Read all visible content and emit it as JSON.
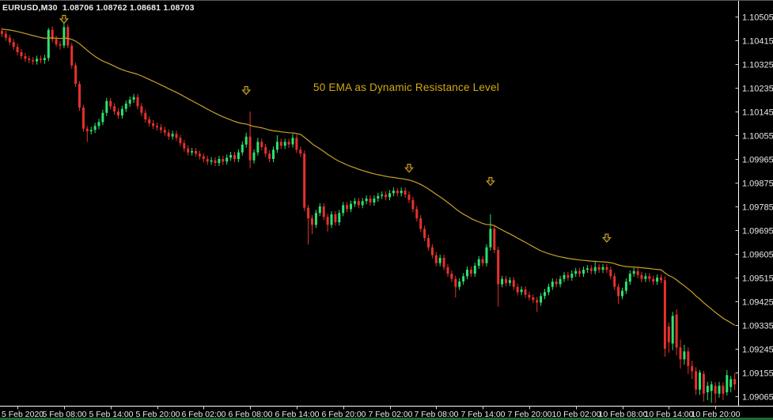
{
  "window": {
    "title": "EURUSD,M30  1.08706 1.08762 1.08681 1.08703"
  },
  "annotation": {
    "text": "50 EMA as Dynamic Resistance Level"
  },
  "colors": {
    "background": "#000000",
    "bull": "#2ce26e",
    "bear": "#e8312b",
    "ema": "#c8a227",
    "arrow": "#d8b232",
    "annotation": "#d4a90e",
    "axis_text": "#e8e8e8",
    "axis_line": "#ffffff",
    "title_text": "#ececec",
    "bottom_strip": "#1d6b33"
  },
  "chart_data": {
    "type": "candlestick",
    "symbol": "EURUSD",
    "timeframe": "M30",
    "current_bar": {
      "open": "1.08706",
      "high": "1.08762",
      "low": "1.08681",
      "close": "1.08703"
    },
    "grid": false,
    "legend": false,
    "y_axis": {
      "top_price": 1.10505,
      "step": 0.0009,
      "min": 1.09065,
      "max": 1.10505,
      "labels": [
        "1.10505",
        "1.10415",
        "1.10325",
        "1.10235",
        "1.10145",
        "1.10055",
        "1.09965",
        "1.09875",
        "1.09785",
        "1.09695",
        "1.09605",
        "1.09515",
        "1.09425",
        "1.09335",
        "1.09245",
        "1.09155",
        "1.09065"
      ]
    },
    "x_axis": {
      "ticks": [
        {
          "bar": 4,
          "label": "5 Feb 2020"
        },
        {
          "bar": 16,
          "label": "5 Feb 08:00"
        },
        {
          "bar": 28,
          "label": "5 Feb 14:00"
        },
        {
          "bar": 40,
          "label": "5 Feb 20:00"
        },
        {
          "bar": 52,
          "label": "6 Feb 02:00"
        },
        {
          "bar": 64,
          "label": "6 Feb 08:00"
        },
        {
          "bar": 76,
          "label": "6 Feb 14:00"
        },
        {
          "bar": 88,
          "label": "6 Feb 20:00"
        },
        {
          "bar": 100,
          "label": "7 Feb 02:00"
        },
        {
          "bar": 112,
          "label": "7 Feb 08:00"
        },
        {
          "bar": 124,
          "label": "7 Feb 14:00"
        },
        {
          "bar": 136,
          "label": "7 Feb 20:00"
        },
        {
          "bar": 148,
          "label": "10 Feb 02:00"
        },
        {
          "bar": 160,
          "label": "10 Feb 08:00"
        },
        {
          "bar": 172,
          "label": "10 Feb 14:00"
        },
        {
          "bar": 184,
          "label": "10 Feb 20:00"
        }
      ]
    },
    "ema": {
      "period": 50,
      "seed": 1.10458
    },
    "arrows": [
      {
        "bar": 16,
        "price": 1.10495
      },
      {
        "bar": 63,
        "price": 1.10225
      },
      {
        "bar": 105,
        "price": 1.0993
      },
      {
        "bar": 126,
        "price": 1.0988
      },
      {
        "bar": 156,
        "price": 1.09665
      }
    ],
    "candles": [
      [
        1.1045,
        1.10462,
        1.10428,
        1.1044
      ],
      [
        1.1044,
        1.10452,
        1.10413,
        1.10425
      ],
      [
        1.10425,
        1.10437,
        1.10396,
        1.10408
      ],
      [
        1.10408,
        1.1042,
        1.10378,
        1.1039
      ],
      [
        1.1039,
        1.10402,
        1.10358,
        1.1037
      ],
      [
        1.1037,
        1.10382,
        1.10343,
        1.10355
      ],
      [
        1.10355,
        1.10367,
        1.10333,
        1.10345
      ],
      [
        1.10345,
        1.10357,
        1.10328,
        1.1034
      ],
      [
        1.1034,
        1.10352,
        1.10323,
        1.10335
      ],
      [
        1.10335,
        1.10357,
        1.10323,
        1.10345
      ],
      [
        1.10345,
        1.10357,
        1.10328,
        1.1034
      ],
      [
        1.1034,
        1.1036,
        1.10326,
        1.10348
      ],
      [
        1.10348,
        1.10462,
        1.10336,
        1.10455
      ],
      [
        1.10455,
        1.10468,
        1.10408,
        1.1042
      ],
      [
        1.1042,
        1.10432,
        1.1039,
        1.104
      ],
      [
        1.104,
        1.10412,
        1.1038,
        1.10395
      ],
      [
        1.10395,
        1.10485,
        1.10385,
        1.10465
      ],
      [
        1.10465,
        1.10475,
        1.10385,
        1.10395
      ],
      [
        1.10395,
        1.10405,
        1.10308,
        1.1032
      ],
      [
        1.1032,
        1.1033,
        1.10238,
        1.1025
      ],
      [
        1.1025,
        1.1026,
        1.10148,
        1.1016
      ],
      [
        1.1016,
        1.1017,
        1.10068,
        1.1008
      ],
      [
        1.1008,
        1.1009,
        1.1003,
        1.1007
      ],
      [
        1.1007,
        1.10087,
        1.10058,
        1.10075
      ],
      [
        1.10075,
        1.10102,
        1.10063,
        1.1009
      ],
      [
        1.1009,
        1.10117,
        1.10078,
        1.10105
      ],
      [
        1.10105,
        1.10152,
        1.10093,
        1.1014
      ],
      [
        1.1014,
        1.10197,
        1.10128,
        1.10185
      ],
      [
        1.10185,
        1.10197,
        1.10153,
        1.10165
      ],
      [
        1.10165,
        1.10177,
        1.10133,
        1.10145
      ],
      [
        1.10145,
        1.10157,
        1.10118,
        1.1013
      ],
      [
        1.1013,
        1.10167,
        1.10118,
        1.10155
      ],
      [
        1.10155,
        1.10187,
        1.10143,
        1.10175
      ],
      [
        1.10175,
        1.10202,
        1.10163,
        1.1019
      ],
      [
        1.1019,
        1.10212,
        1.10178,
        1.102
      ],
      [
        1.102,
        1.10212,
        1.10153,
        1.10165
      ],
      [
        1.10165,
        1.10177,
        1.10128,
        1.1014
      ],
      [
        1.1014,
        1.10152,
        1.10103,
        1.10115
      ],
      [
        1.10115,
        1.10127,
        1.10088,
        1.101
      ],
      [
        1.101,
        1.10112,
        1.10078,
        1.1009
      ],
      [
        1.1009,
        1.10102,
        1.10073,
        1.10085
      ],
      [
        1.10085,
        1.10097,
        1.10063,
        1.10075
      ],
      [
        1.10075,
        1.10087,
        1.10053,
        1.10065
      ],
      [
        1.10065,
        1.10077,
        1.10038,
        1.1005
      ],
      [
        1.1005,
        1.10072,
        1.10038,
        1.1006
      ],
      [
        1.1006,
        1.10072,
        1.10033,
        1.10045
      ],
      [
        1.10045,
        1.10057,
        1.10013,
        1.10025
      ],
      [
        1.10025,
        1.10037,
        1.09993,
        1.10005
      ],
      [
        1.10005,
        1.10017,
        1.09978,
        1.0999
      ],
      [
        1.0999,
        1.10007,
        1.09978,
        1.09995
      ],
      [
        1.09995,
        1.10007,
        1.09973,
        1.09985
      ],
      [
        1.09985,
        1.09997,
        1.09963,
        1.09975
      ],
      [
        1.09975,
        1.09987,
        1.09953,
        1.09965
      ],
      [
        1.09965,
        1.09977,
        1.09943,
        1.09955
      ],
      [
        1.09955,
        1.09972,
        1.09943,
        1.0996
      ],
      [
        1.0996,
        1.09972,
        1.09938,
        1.0995
      ],
      [
        1.0995,
        1.09977,
        1.09938,
        1.09965
      ],
      [
        1.09965,
        1.09977,
        1.09943,
        1.09955
      ],
      [
        1.09955,
        1.09982,
        1.09943,
        1.0997
      ],
      [
        1.0997,
        1.09992,
        1.09958,
        1.0998
      ],
      [
        1.0998,
        1.09992,
        1.09953,
        1.09965
      ],
      [
        1.09965,
        1.10002,
        1.09953,
        1.0999
      ],
      [
        1.0999,
        1.10032,
        1.09978,
        1.1002
      ],
      [
        1.1002,
        1.10065,
        1.10008,
        1.1005
      ],
      [
        1.1005,
        1.10145,
        1.0993,
        1.0996
      ],
      [
        1.0996,
        1.10002,
        1.09948,
        1.0999
      ],
      [
        1.0999,
        1.10045,
        1.09978,
        1.1003
      ],
      [
        1.1003,
        1.10042,
        1.09998,
        1.1001
      ],
      [
        1.1001,
        1.10022,
        1.09973,
        1.09985
      ],
      [
        1.09985,
        1.09997,
        1.09953,
        1.09965
      ],
      [
        1.09965,
        1.10012,
        1.09953,
        1.1
      ],
      [
        1.1,
        1.10055,
        1.09988,
        1.1003
      ],
      [
        1.1003,
        1.10042,
        1.10003,
        1.10015
      ],
      [
        1.10015,
        1.10042,
        1.10003,
        1.1003
      ],
      [
        1.1003,
        1.10042,
        1.10008,
        1.1002
      ],
      [
        1.1002,
        1.1006,
        1.10008,
        1.10045
      ],
      [
        1.10045,
        1.10057,
        1.09988,
        1.1
      ],
      [
        1.1,
        1.10012,
        1.09973,
        1.09985
      ],
      [
        1.09985,
        1.09997,
        1.09768,
        1.0978
      ],
      [
        1.0978,
        1.09792,
        1.0964,
        1.0974
      ],
      [
        1.0974,
        1.09752,
        1.0968,
        1.09715
      ],
      [
        1.09715,
        1.09772,
        1.09703,
        1.0976
      ],
      [
        1.0976,
        1.09797,
        1.09748,
        1.09785
      ],
      [
        1.09785,
        1.09797,
        1.09733,
        1.09745
      ],
      [
        1.09745,
        1.09757,
        1.0969,
        1.09715
      ],
      [
        1.09715,
        1.09767,
        1.09703,
        1.09755
      ],
      [
        1.09755,
        1.09767,
        1.09713,
        1.09725
      ],
      [
        1.09725,
        1.09772,
        1.09713,
        1.0976
      ],
      [
        1.0976,
        1.09802,
        1.09748,
        1.0979
      ],
      [
        1.0979,
        1.09802,
        1.09763,
        1.09775
      ],
      [
        1.09775,
        1.09807,
        1.09763,
        1.09795
      ],
      [
        1.09795,
        1.09817,
        1.09783,
        1.09805
      ],
      [
        1.09805,
        1.09817,
        1.09778,
        1.0979
      ],
      [
        1.0979,
        1.09817,
        1.09778,
        1.09805
      ],
      [
        1.09805,
        1.09827,
        1.09793,
        1.09815
      ],
      [
        1.09815,
        1.09827,
        1.09788,
        1.098
      ],
      [
        1.098,
        1.09827,
        1.09788,
        1.09815
      ],
      [
        1.09815,
        1.09837,
        1.09803,
        1.09825
      ],
      [
        1.09825,
        1.09842,
        1.09813,
        1.0983
      ],
      [
        1.0983,
        1.09842,
        1.09808,
        1.0982
      ],
      [
        1.0982,
        1.09847,
        1.09808,
        1.09835
      ],
      [
        1.09835,
        1.09857,
        1.09823,
        1.09845
      ],
      [
        1.09845,
        1.09855,
        1.09823,
        1.09835
      ],
      [
        1.09835,
        1.09857,
        1.09823,
        1.09845
      ],
      [
        1.09845,
        1.09857,
        1.09818,
        1.0983
      ],
      [
        1.0983,
        1.09842,
        1.09798,
        1.0981
      ],
      [
        1.0981,
        1.09822,
        1.09763,
        1.09775
      ],
      [
        1.09775,
        1.09787,
        1.09728,
        1.0974
      ],
      [
        1.0974,
        1.09752,
        1.09688,
        1.097
      ],
      [
        1.097,
        1.09712,
        1.09653,
        1.09665
      ],
      [
        1.09665,
        1.09677,
        1.09618,
        1.0963
      ],
      [
        1.0963,
        1.09642,
        1.09588,
        1.096
      ],
      [
        1.096,
        1.09612,
        1.09558,
        1.0957
      ],
      [
        1.0957,
        1.09602,
        1.09558,
        1.0959
      ],
      [
        1.0959,
        1.09602,
        1.09543,
        1.09555
      ],
      [
        1.09555,
        1.09567,
        1.09518,
        1.0953
      ],
      [
        1.0953,
        1.09542,
        1.09498,
        1.0951
      ],
      [
        1.0951,
        1.09522,
        1.0944,
        1.0948
      ],
      [
        1.0948,
        1.09512,
        1.09468,
        1.095
      ],
      [
        1.095,
        1.09532,
        1.09488,
        1.0952
      ],
      [
        1.0952,
        1.09557,
        1.09508,
        1.09545
      ],
      [
        1.09545,
        1.09557,
        1.09518,
        1.0953
      ],
      [
        1.0953,
        1.09572,
        1.09518,
        1.0956
      ],
      [
        1.0956,
        1.09597,
        1.09548,
        1.09585
      ],
      [
        1.09585,
        1.09597,
        1.09558,
        1.0957
      ],
      [
        1.0957,
        1.09642,
        1.09558,
        1.0963
      ],
      [
        1.0963,
        1.09755,
        1.09618,
        1.097
      ],
      [
        1.097,
        1.09712,
        1.09608,
        1.0962
      ],
      [
        1.0962,
        1.09632,
        1.09405,
        1.0949
      ],
      [
        1.0949,
        1.09522,
        1.09478,
        1.0951
      ],
      [
        1.0951,
        1.09522,
        1.09483,
        1.09495
      ],
      [
        1.09495,
        1.09517,
        1.09483,
        1.09505
      ],
      [
        1.09505,
        1.09517,
        1.09468,
        1.0948
      ],
      [
        1.0948,
        1.09492,
        1.09448,
        1.0946
      ],
      [
        1.0946,
        1.09482,
        1.09448,
        1.0947
      ],
      [
        1.0947,
        1.09482,
        1.09438,
        1.0945
      ],
      [
        1.0945,
        1.09462,
        1.09428,
        1.0944
      ],
      [
        1.0944,
        1.09452,
        1.09418,
        1.0943
      ],
      [
        1.0943,
        1.09442,
        1.09385,
        1.0942
      ],
      [
        1.0942,
        1.09457,
        1.09408,
        1.09445
      ],
      [
        1.09445,
        1.09472,
        1.09433,
        1.0946
      ],
      [
        1.0946,
        1.09492,
        1.09448,
        1.0948
      ],
      [
        1.0948,
        1.09512,
        1.09468,
        1.095
      ],
      [
        1.095,
        1.09512,
        1.09478,
        1.0949
      ],
      [
        1.0949,
        1.09522,
        1.09478,
        1.0951
      ],
      [
        1.0951,
        1.09537,
        1.09498,
        1.09525
      ],
      [
        1.09525,
        1.09537,
        1.09503,
        1.09515
      ],
      [
        1.09515,
        1.09542,
        1.09503,
        1.0953
      ],
      [
        1.0953,
        1.09552,
        1.09518,
        1.0954
      ],
      [
        1.0954,
        1.09552,
        1.09518,
        1.0953
      ],
      [
        1.0953,
        1.09557,
        1.09518,
        1.09545
      ],
      [
        1.09545,
        1.09562,
        1.09533,
        1.0955
      ],
      [
        1.0955,
        1.09562,
        1.09528,
        1.0954
      ],
      [
        1.0954,
        1.09575,
        1.09528,
        1.09555
      ],
      [
        1.09555,
        1.09567,
        1.09533,
        1.09545
      ],
      [
        1.09545,
        1.09567,
        1.09533,
        1.09555
      ],
      [
        1.09555,
        1.09567,
        1.09533,
        1.09545
      ],
      [
        1.09545,
        1.09557,
        1.09508,
        1.0952
      ],
      [
        1.0952,
        1.09532,
        1.09468,
        1.0948
      ],
      [
        1.0948,
        1.09492,
        1.09415,
        1.09445
      ],
      [
        1.09445,
        1.09477,
        1.09433,
        1.09465
      ],
      [
        1.09465,
        1.09512,
        1.09453,
        1.095
      ],
      [
        1.095,
        1.09542,
        1.09488,
        1.0953
      ],
      [
        1.0953,
        1.09552,
        1.09518,
        1.0954
      ],
      [
        1.0954,
        1.09552,
        1.09513,
        1.09525
      ],
      [
        1.09525,
        1.09537,
        1.09498,
        1.0951
      ],
      [
        1.0951,
        1.09532,
        1.09498,
        1.0952
      ],
      [
        1.0952,
        1.09532,
        1.09498,
        1.0951
      ],
      [
        1.0951,
        1.09522,
        1.09488,
        1.095
      ],
      [
        1.095,
        1.09527,
        1.09488,
        1.09515
      ],
      [
        1.09515,
        1.09527,
        1.09493,
        1.09505
      ],
      [
        1.09505,
        1.0952,
        1.09215,
        1.09245
      ],
      [
        1.0933,
        1.09345,
        1.0923,
        1.0927
      ],
      [
        1.09265,
        1.09385,
        1.0924,
        1.0937
      ],
      [
        1.09375,
        1.09395,
        1.0922,
        1.0925
      ],
      [
        1.0925,
        1.0928,
        1.0917,
        1.09205
      ],
      [
        1.09205,
        1.0926,
        1.09185,
        1.09235
      ],
      [
        1.09235,
        1.0925,
        1.0915,
        1.0918
      ],
      [
        1.0918,
        1.092,
        1.0913,
        1.0916
      ],
      [
        1.0916,
        1.09175,
        1.0907,
        1.0909
      ],
      [
        1.0909,
        1.09165,
        1.0907,
        1.09155
      ],
      [
        1.0915,
        1.09162,
        1.09045,
        1.09075
      ],
      [
        1.0908,
        1.0912,
        1.0905,
        1.09105
      ],
      [
        1.09085,
        1.09122,
        1.0904,
        1.0911
      ],
      [
        1.09105,
        1.09118,
        1.0904,
        1.09075
      ],
      [
        1.09075,
        1.0912,
        1.0906,
        1.09105
      ],
      [
        1.09105,
        1.09118,
        1.0905,
        1.09075
      ],
      [
        1.0908,
        1.09165,
        1.09068,
        1.09145
      ],
      [
        1.091,
        1.09142,
        1.0908,
        1.0913
      ],
      [
        1.0913,
        1.09152,
        1.09088,
        1.0911
      ]
    ]
  }
}
